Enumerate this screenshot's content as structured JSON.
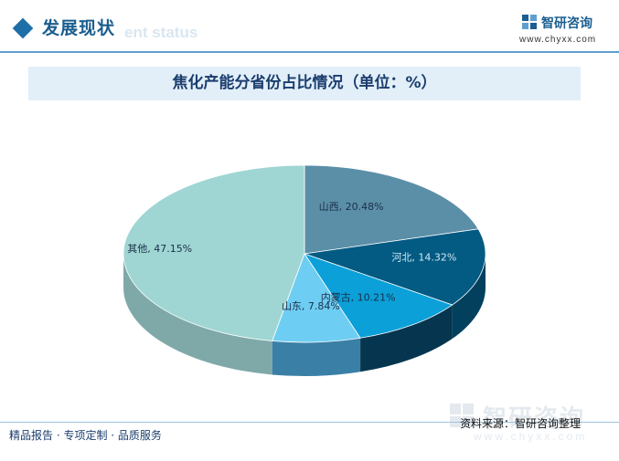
{
  "header": {
    "section_title": "发展现状",
    "section_subtitle": "ent status",
    "brand_name": "智研咨询",
    "brand_url": "www.chyxx.com"
  },
  "chart_data": {
    "type": "pie",
    "title": "焦化产能分省份占比情况（单位：%）",
    "series": [
      {
        "name": "山西",
        "label": "山西, 20.48%",
        "value": 20.48,
        "color": "#5b8fa8",
        "side_color": "#3f6f87"
      },
      {
        "name": "河北",
        "label": "河北, 14.32%",
        "value": 14.32,
        "color": "#035a82",
        "side_color": "#02405e"
      },
      {
        "name": "内蒙古",
        "label": "内蒙古, 10.21%",
        "value": 10.21,
        "color": "#0ba0d8",
        "side_color": "#06364f"
      },
      {
        "name": "山东",
        "label": "山东, 7.84%",
        "value": 7.84,
        "color": "#6ecdf2",
        "side_color": "#3a7fa6"
      },
      {
        "name": "其他",
        "label": "其他, 47.15%",
        "value": 47.15,
        "color": "#9fd6d3",
        "side_color": "#7fa9a8"
      }
    ]
  },
  "footer": {
    "left_text": "精品报告 · 专项定制 · 品质服务",
    "source_text": "资料来源：智研咨询整理"
  },
  "watermark": {
    "name": "智研咨询",
    "url": "www.chyxx.com"
  }
}
